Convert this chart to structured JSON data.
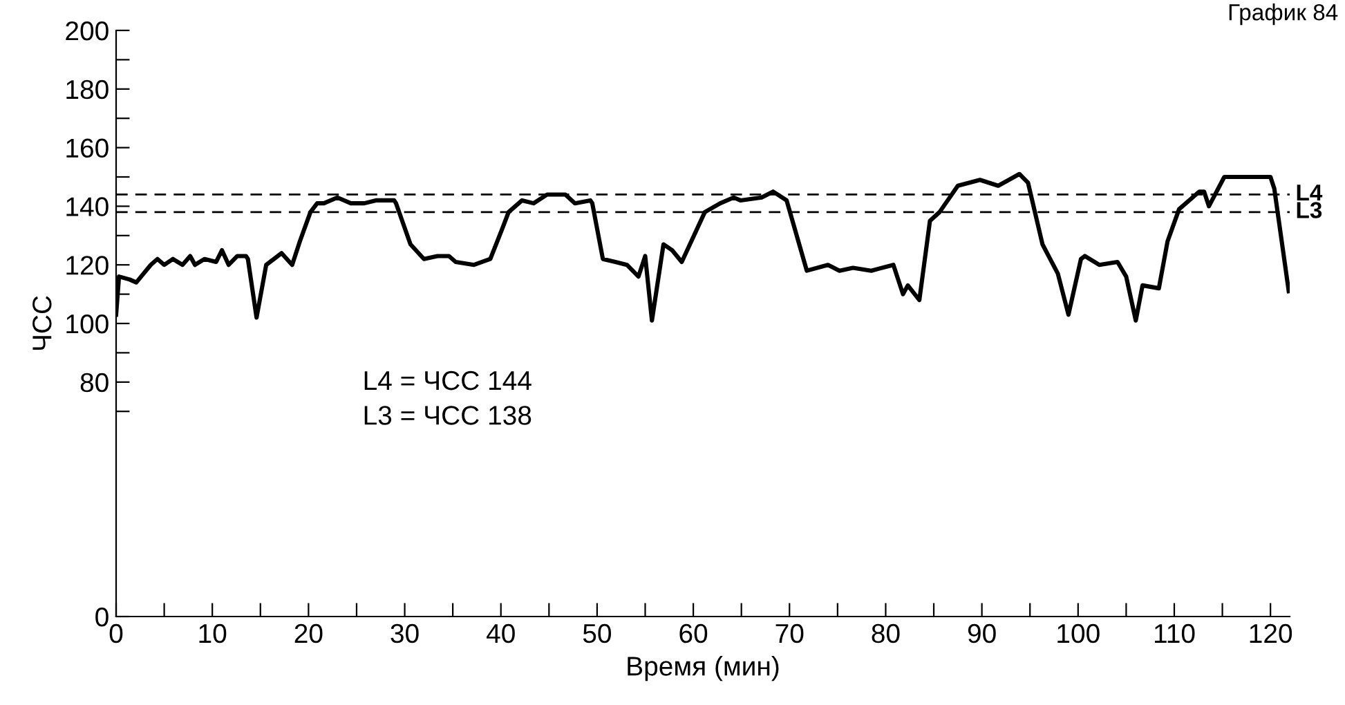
{
  "chart_data": {
    "type": "line",
    "title": "График 84",
    "xlabel": "Время (мин)",
    "ylabel": "ЧСС",
    "annotations": [
      "L4 = ЧСС 144\nL3 = ЧСС 138"
    ],
    "xlim": [
      0,
      122
    ],
    "ylim": [
      0,
      200
    ],
    "xticks": [
      0,
      {
        "value": 5,
        "label": null
      },
      10,
      {
        "value": 15,
        "label": null
      },
      20,
      {
        "value": 25,
        "label": null
      },
      30,
      {
        "value": 35,
        "label": null
      },
      40,
      {
        "value": 45,
        "label": null
      },
      50,
      {
        "value": 55,
        "label": null
      },
      60,
      {
        "value": 65,
        "label": null
      },
      70,
      {
        "value": 75,
        "label": null
      },
      80,
      {
        "value": 85,
        "label": null
      },
      90,
      {
        "value": 95,
        "label": null
      },
      100,
      {
        "value": 105,
        "label": null
      },
      110,
      {
        "value": 115,
        "label": null
      },
      120
    ],
    "yticks": [
      0,
      {
        "value": 70,
        "label": null
      },
      80,
      {
        "value": 90,
        "label": null
      },
      100,
      {
        "value": 110,
        "label": null
      },
      120,
      {
        "value": 130,
        "label": null
      },
      140,
      {
        "value": 150,
        "label": null
      },
      160,
      {
        "value": 170,
        "label": null
      },
      180,
      {
        "value": 190,
        "label": null
      },
      200
    ],
    "ref_lines": [
      {
        "axis": "y",
        "value": 144,
        "label": "L4",
        "color": "#000000",
        "line_style": "dashed"
      },
      {
        "axis": "y",
        "value": 138,
        "label": "L3",
        "color": "#000000",
        "line_style": "dashed"
      }
    ],
    "grid": false,
    "legend": false,
    "marker": "none",
    "line_style": "solid",
    "series": [
      {
        "color": "#000000",
        "x": [
          0,
          0.3,
          1.4,
          2.1,
          2.6,
          3.6,
          4.3,
          5.0,
          5.9,
          6.9,
          7.7,
          8.2,
          9.2,
          10.4,
          11.0,
          11.7,
          12.6,
          13.5,
          13.7,
          14.6,
          15.6,
          17.2,
          18.3,
          19.1,
          20.2,
          20.9,
          21.6,
          23.0,
          24.4,
          25.8,
          27.0,
          28.9,
          29.1,
          30.6,
          32.0,
          33.4,
          34.6,
          35.3,
          37.2,
          38.9,
          40.1,
          40.8,
          42.2,
          43.4,
          44.8,
          46.7,
          47.7,
          49.3,
          49.5,
          50.6,
          51.9,
          53.1,
          54.3,
          55.0,
          55.7,
          56.9,
          57.8,
          58.8,
          61.2,
          62.8,
          64.2,
          64.9,
          67.1,
          68.3,
          69.7,
          71.8,
          74.0,
          75.2,
          76.6,
          78.5,
          80.8,
          81.8,
          82.3,
          83.5,
          84.6,
          85.6,
          87.5,
          89.8,
          91.7,
          93.9,
          94.8,
          96.3,
          97.9,
          99.0,
          100.3,
          100.7,
          102.2,
          104.1,
          105.0,
          106.0,
          106.7,
          108.4,
          109.3,
          110.5,
          112.6,
          113.1,
          113.6,
          115.2,
          116.4,
          118.3,
          120.0,
          120.4,
          121.9
        ],
        "values": [
          103,
          116,
          115,
          114,
          116,
          120,
          122,
          120,
          122,
          120,
          123,
          120,
          122,
          121,
          125,
          120,
          123,
          123,
          122,
          102,
          120,
          124,
          120,
          128,
          138,
          141,
          141,
          143,
          141,
          141,
          142,
          142,
          141,
          127,
          122,
          123,
          123,
          121,
          120,
          122,
          132,
          138,
          142,
          141,
          144,
          144,
          141,
          142,
          141,
          122,
          121,
          120,
          116,
          123,
          101,
          127,
          125,
          121,
          138,
          141,
          143,
          142,
          143,
          145,
          142,
          118,
          120,
          118,
          119,
          118,
          120,
          110,
          113,
          108,
          135,
          138,
          147,
          149,
          147,
          151,
          148,
          127,
          117,
          103,
          122,
          123,
          120,
          121,
          116,
          101,
          113,
          112,
          128,
          139,
          145,
          145,
          140,
          150,
          150,
          150,
          150,
          146,
          111
        ]
      }
    ]
  }
}
